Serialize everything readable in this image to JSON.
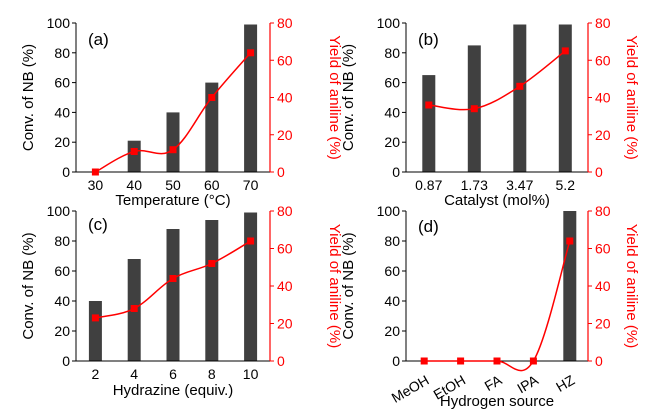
{
  "colors": {
    "bar": "#404040",
    "line": "#ff0000",
    "axis_left": "#000000",
    "axis_right": "#ff0000"
  },
  "chart_data": [
    {
      "type": "bar+line",
      "panel_label": "(a)",
      "xlabel": "Temperature (°C)",
      "ylabel": "Conv. of NB  (%)",
      "ylabel_right": "Yield of aniline (%)",
      "categories": [
        "30",
        "40",
        "50",
        "60",
        "70"
      ],
      "ylim": [
        0,
        100
      ],
      "yticks": [
        "0",
        "20",
        "40",
        "60",
        "80",
        "100"
      ],
      "ylim_right": [
        0,
        80
      ],
      "yticks_right": [
        "0",
        "20",
        "40",
        "60",
        "80"
      ],
      "bar_values": [
        0,
        21,
        40,
        60,
        99
      ],
      "line_values": [
        0,
        11,
        12,
        40,
        64
      ]
    },
    {
      "type": "bar+line",
      "panel_label": "(b)",
      "xlabel": "Catalyst (mol%)",
      "ylabel": "Conv. of NB  (%)",
      "ylabel_right": "Yield of aniline (%)",
      "categories": [
        "0.87",
        "1.73",
        "3.47",
        "5.2"
      ],
      "ylim": [
        0,
        100
      ],
      "yticks": [
        "0",
        "20",
        "40",
        "60",
        "80",
        "100"
      ],
      "ylim_right": [
        0,
        80
      ],
      "yticks_right": [
        "0",
        "20",
        "40",
        "60",
        "80"
      ],
      "bar_values": [
        65,
        85,
        99,
        99
      ],
      "line_values": [
        36,
        34,
        46,
        65
      ]
    },
    {
      "type": "bar+line",
      "panel_label": "(c)",
      "xlabel": "Hydrazine (equiv.)",
      "ylabel": "Conv. of NB  (%)",
      "ylabel_right": "Yield of aniline (%)",
      "categories": [
        "2",
        "4",
        "6",
        "8",
        "10"
      ],
      "ylim": [
        0,
        100
      ],
      "yticks": [
        "0",
        "20",
        "40",
        "60",
        "80",
        "100"
      ],
      "ylim_right": [
        0,
        80
      ],
      "yticks_right": [
        "0",
        "20",
        "40",
        "60",
        "80"
      ],
      "bar_values": [
        40,
        68,
        88,
        94,
        99
      ],
      "line_values": [
        23,
        28,
        44,
        52,
        64
      ]
    },
    {
      "type": "bar+line",
      "panel_label": "(d)",
      "xlabel": "Hydrogen source",
      "ylabel": "Conv. of NB  (%)",
      "ylabel_right": "Yield of aniline (%)",
      "categories": [
        "MeOH",
        "EtOH",
        "FA",
        "IPA",
        "HZ"
      ],
      "ylim": [
        0,
        100
      ],
      "yticks": [
        "0",
        "20",
        "40",
        "60",
        "80",
        "100"
      ],
      "ylim_right": [
        0,
        80
      ],
      "yticks_right": [
        "0",
        "20",
        "40",
        "60",
        "80"
      ],
      "bar_values": [
        0,
        0,
        0,
        0,
        100
      ],
      "line_values": [
        0,
        0,
        0,
        0,
        64
      ]
    }
  ]
}
